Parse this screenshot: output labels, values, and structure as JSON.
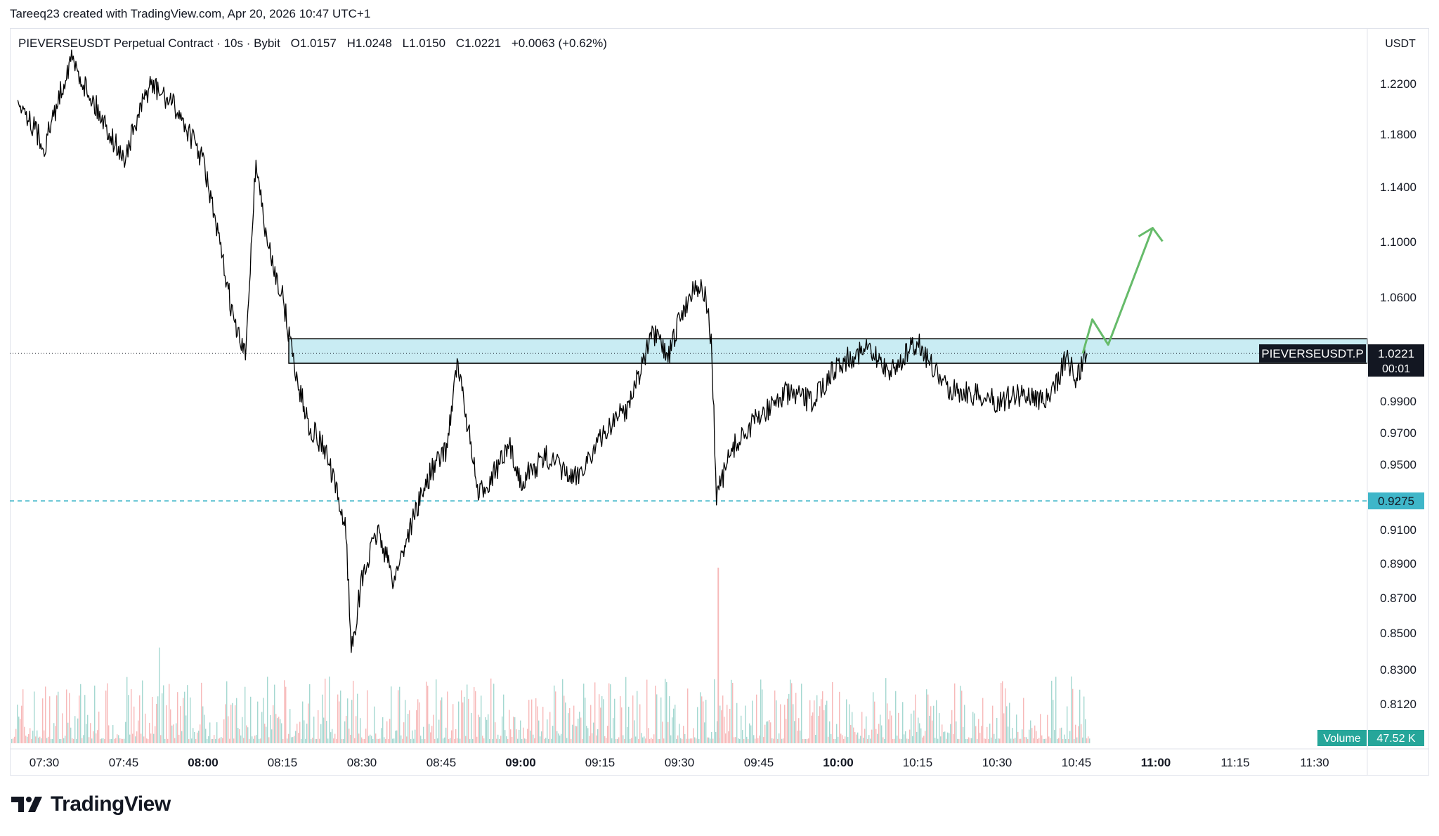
{
  "header": {
    "credit": "Tareeq23 created with TradingView.com, Apr 20, 2026 10:47 UTC+1"
  },
  "legend": {
    "symbol": "PIEVERSEUSDT Perpetual Contract · 10s · Bybit",
    "open": "O1.0157",
    "high": "H1.0248",
    "low": "L1.0150",
    "close": "C1.0221",
    "change": "+0.0063 (+0.62%)"
  },
  "price_axis": {
    "unit": "USDT",
    "ticks": [
      "1.2200",
      "1.1800",
      "1.1400",
      "1.1000",
      "1.0600",
      "0.9900",
      "0.9700",
      "0.9500",
      "0.9100",
      "0.8900",
      "0.8700",
      "0.8500",
      "0.8300",
      "0.8120"
    ]
  },
  "time_axis": {
    "ticks": [
      "07:30",
      "07:45",
      "08:00",
      "08:15",
      "08:30",
      "08:45",
      "09:00",
      "09:15",
      "09:30",
      "09:45",
      "10:00",
      "10:15",
      "10:30",
      "10:45",
      "11:00",
      "11:15",
      "11:30"
    ],
    "bold_ticks": [
      "08:00",
      "09:00",
      "10:00",
      "11:00"
    ]
  },
  "labels": {
    "symbol_tag": "PIEVERSEUSDT.P",
    "last_price": "1.0221",
    "countdown": "00:01",
    "level_price": "0.9275",
    "volume_label": "Volume",
    "volume_value": "47.52 K"
  },
  "colors": {
    "candle": "#000000",
    "zone_fill": "#c9ecf3",
    "zone_border": "#000000",
    "level_line": "#3fb6c9",
    "arrow": "#66bb6a",
    "vol_up": "#a5d8d1",
    "vol_down": "#f7b9b9",
    "volume_badge": "#26a69a"
  },
  "brand": {
    "name": "TradingView"
  },
  "chart_data": {
    "type": "line",
    "title": "PIEVERSEUSDT Perpetual Contract · 10s · Bybit",
    "ylabel": "USDT",
    "ylim": [
      0.8,
      1.25
    ],
    "x": [
      "07:25",
      "07:30",
      "07:35",
      "07:40",
      "07:45",
      "07:50",
      "07:55",
      "08:00",
      "08:04",
      "08:06",
      "08:08",
      "08:10",
      "08:12",
      "08:15",
      "08:18",
      "08:20",
      "08:23",
      "08:25",
      "08:27",
      "08:28",
      "08:30",
      "08:33",
      "08:36",
      "08:40",
      "08:43",
      "08:46",
      "08:48",
      "08:50",
      "08:52",
      "08:55",
      "08:58",
      "09:00",
      "09:05",
      "09:10",
      "09:15",
      "09:18",
      "09:20",
      "09:25",
      "09:28",
      "09:30",
      "09:33",
      "09:35",
      "09:36",
      "09:37",
      "09:40",
      "09:45",
      "09:50",
      "09:55",
      "10:00",
      "10:05",
      "10:10",
      "10:15",
      "10:20",
      "10:25",
      "10:30",
      "10:35",
      "10:40",
      "10:43",
      "10:45",
      "10:47"
    ],
    "series": [
      {
        "values": [
          1.21,
          1.17,
          1.24,
          1.2,
          1.16,
          1.22,
          1.2,
          1.16,
          1.08,
          1.04,
          1.02,
          1.16,
          1.1,
          1.06,
          1.0,
          0.975,
          0.96,
          0.935,
          0.91,
          0.84,
          0.88,
          0.91,
          0.88,
          0.92,
          0.945,
          0.96,
          1.015,
          0.975,
          0.93,
          0.945,
          0.96,
          0.94,
          0.955,
          0.94,
          0.965,
          0.98,
          0.985,
          1.035,
          1.02,
          1.045,
          1.07,
          1.06,
          1.03,
          0.93,
          0.96,
          0.98,
          0.995,
          0.99,
          1.015,
          1.025,
          1.01,
          1.03,
          1.0,
          0.995,
          0.99,
          0.995,
          0.99,
          1.02,
          1.005,
          1.0221
        ]
      }
    ],
    "zone": {
      "from": 1.0155,
      "to": 1.032
    },
    "level": 0.9275,
    "last": 1.0221,
    "projection": [
      [
        10.77,
        1.0221
      ],
      [
        10.8,
        1.045
      ],
      [
        10.85,
        1.028
      ],
      [
        10.99,
        1.11
      ]
    ]
  }
}
